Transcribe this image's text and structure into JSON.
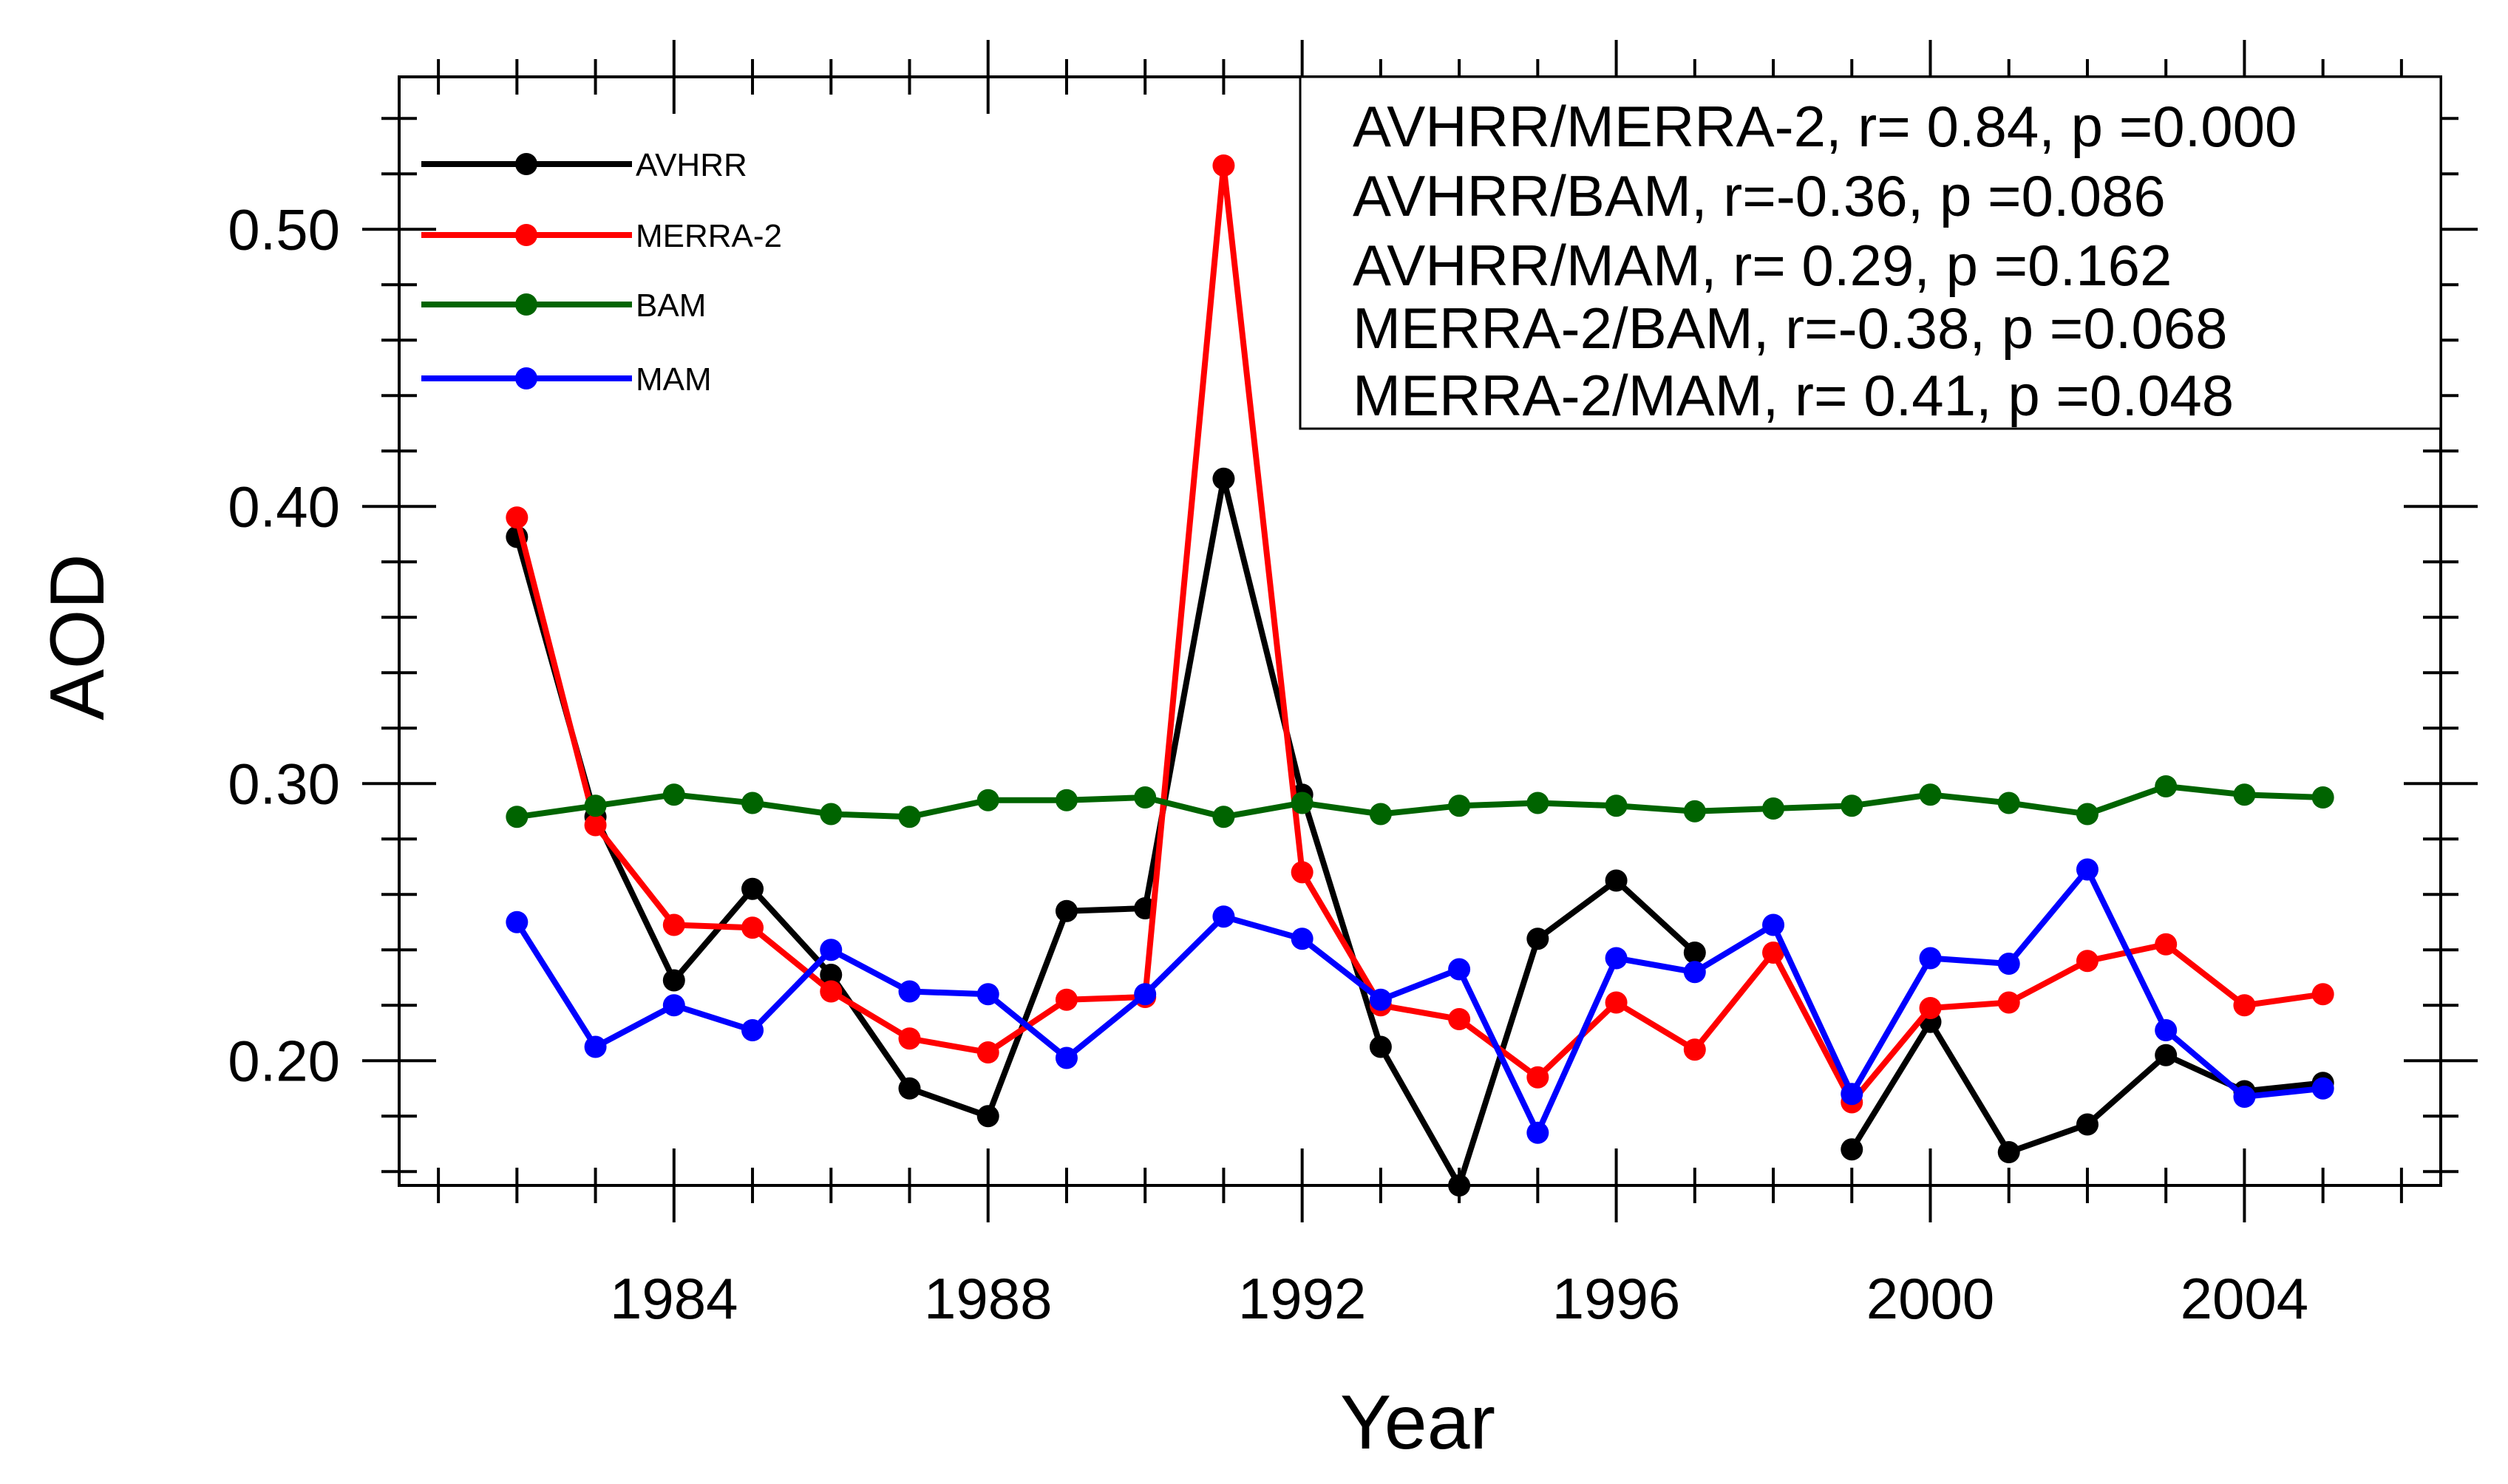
{
  "chart_data": {
    "type": "line",
    "xlabel": "Year",
    "ylabel": "AOD",
    "xlim": [
      1980.5,
      2006.5
    ],
    "ylim": [
      0.155,
      0.555
    ],
    "x_ticks_major": [
      1984,
      1988,
      1992,
      1996,
      2000,
      2004
    ],
    "x_tick_labels": [
      "1984",
      "1988",
      "1992",
      "1996",
      "2000",
      "2004"
    ],
    "y_ticks_major": [
      0.2,
      0.3,
      0.4,
      0.5
    ],
    "y_tick_labels": [
      "0.20",
      "0.30",
      "0.40",
      "0.50"
    ],
    "y_ticks_minor": [
      0.16,
      0.18,
      0.22,
      0.24,
      0.26,
      0.28,
      0.32,
      0.34,
      0.36,
      0.38,
      0.42,
      0.44,
      0.46,
      0.48,
      0.52,
      0.54
    ],
    "x": [
      1982,
      1983,
      1984,
      1985,
      1986,
      1987,
      1988,
      1989,
      1990,
      1991,
      1992,
      1993,
      1994,
      1995,
      1996,
      1997,
      1998,
      1999,
      2000,
      2001,
      2002,
      2003,
      2004,
      2005
    ],
    "series": [
      {
        "name": "AVHRR",
        "color": "#000000",
        "values": [
          0.389,
          0.288,
          0.229,
          0.262,
          0.231,
          0.19,
          0.18,
          0.254,
          0.255,
          0.41,
          0.296,
          0.205,
          0.155,
          0.244,
          0.265,
          0.239,
          null,
          0.168,
          0.214,
          0.167,
          0.177,
          0.202,
          0.189,
          0.192
        ]
      },
      {
        "name": "MERRA-2",
        "color": "#ff0000",
        "values": [
          0.396,
          0.285,
          0.249,
          0.248,
          0.225,
          0.208,
          0.203,
          0.222,
          0.223,
          0.523,
          0.268,
          0.22,
          0.215,
          0.194,
          0.221,
          0.204,
          0.239,
          0.185,
          0.219,
          0.221,
          0.236,
          0.242,
          0.22,
          0.224
        ]
      },
      {
        "name": "BAM",
        "color": "#006400",
        "values": [
          0.288,
          0.292,
          0.296,
          0.293,
          0.289,
          0.288,
          0.294,
          0.294,
          0.295,
          0.288,
          0.293,
          0.289,
          0.292,
          0.293,
          0.292,
          0.29,
          0.291,
          0.292,
          0.296,
          0.293,
          0.289,
          0.299,
          0.296,
          0.295
        ]
      },
      {
        "name": "MAM",
        "color": "#0000ff",
        "values": [
          0.25,
          0.205,
          0.22,
          0.211,
          0.24,
          0.225,
          0.224,
          0.201,
          0.224,
          0.252,
          0.244,
          0.222,
          0.233,
          0.174,
          0.237,
          0.232,
          0.249,
          0.188,
          0.237,
          0.235,
          0.269,
          0.211,
          0.187,
          0.19
        ]
      }
    ],
    "legend_position": "top-left",
    "annotations": [
      "AVHRR/MERRA-2, r= 0.84, p =0.000",
      "AVHRR/BAM, r=-0.36, p =0.086",
      "AVHRR/MAM, r= 0.29, p =0.162",
      "MERRA-2/BAM, r=-0.38, p =0.068",
      "MERRA-2/MAM, r= 0.41, p =0.048"
    ]
  }
}
